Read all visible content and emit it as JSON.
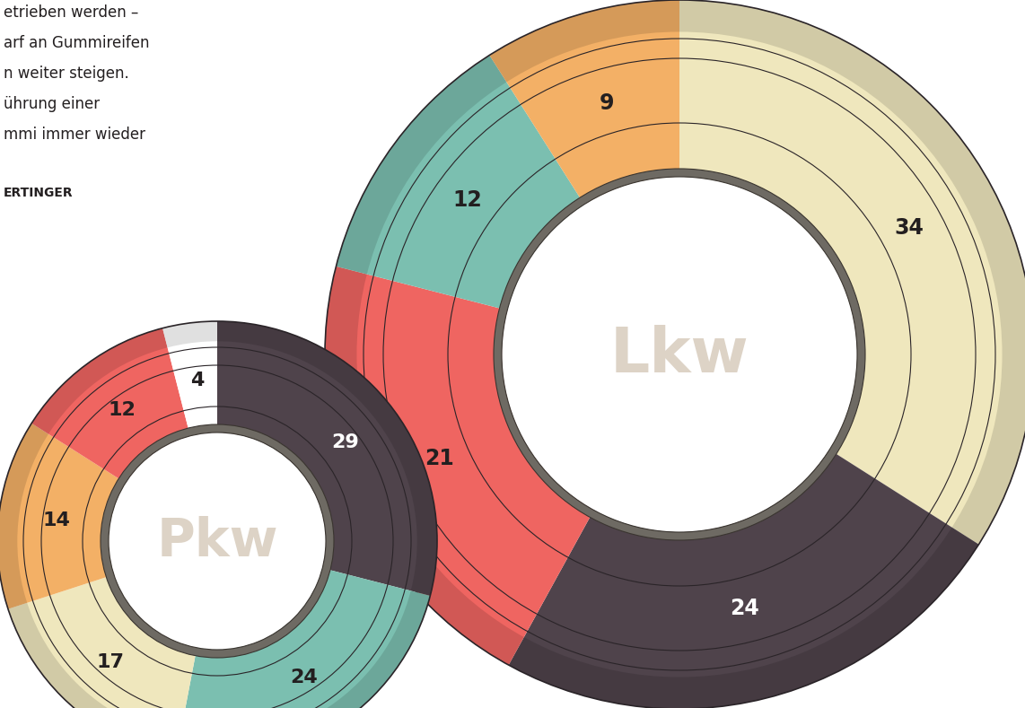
{
  "text": {
    "paragraph": [
      "etrieben werden –",
      "arf an Gummireifen",
      "n weiter steigen.",
      "ührung einer",
      "mmi immer wieder"
    ],
    "byline": "ERTINGER"
  },
  "chart_data": [
    {
      "type": "pie",
      "title": "Pkw",
      "values": [
        29,
        24,
        17,
        14,
        12,
        4
      ],
      "colors": [
        "#4f434b",
        "#7bbfb0",
        "#efe7bd",
        "#f3b066",
        "#ef6561",
        "#ffffff"
      ],
      "data_labels": true
    },
    {
      "type": "pie",
      "title": "Lkw",
      "values": [
        34,
        24,
        21,
        12,
        9
      ],
      "colors": [
        "#efe7bd",
        "#4f434b",
        "#ef6561",
        "#7bbfb0",
        "#f3b066"
      ],
      "data_labels": true
    }
  ]
}
